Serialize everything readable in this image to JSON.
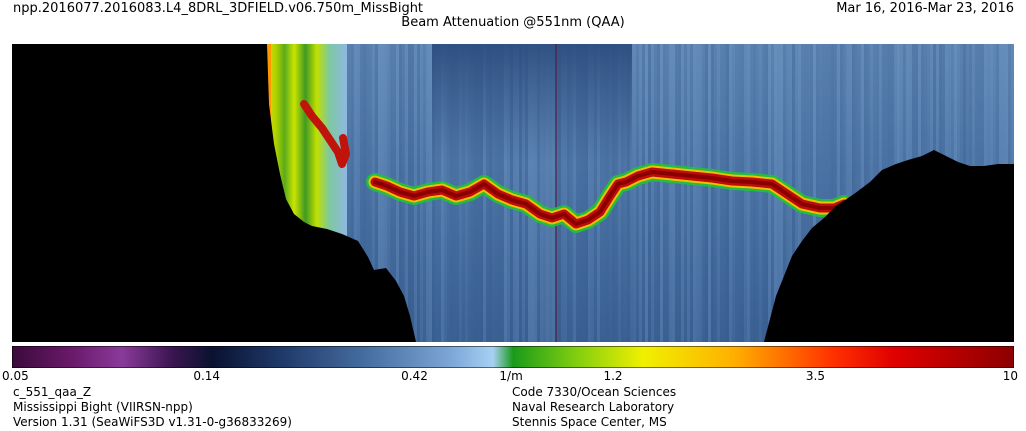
{
  "header": {
    "filename": "npp.2016077.2016083.L4_8DRL_3DFIELD.v06.750m_MissBight",
    "date_range": "Mar 16, 2016-Mar 23, 2016",
    "title": "Beam Attenuation @551nm (QAA)"
  },
  "chart_data": {
    "type": "heatmap",
    "title": "Beam Attenuation @551nm (QAA)",
    "colorbar": {
      "scale": "log",
      "range": [
        0.05,
        10
      ],
      "ticks": [
        {
          "value": 0.05,
          "label": "0.05"
        },
        {
          "value": 0.14,
          "label": "0.14"
        },
        {
          "value": 0.42,
          "label": "0.42"
        },
        {
          "value": 0.7,
          "label": "1/m"
        },
        {
          "value": 1.2,
          "label": "1.2"
        },
        {
          "value": 3.5,
          "label": "3.5"
        },
        {
          "value": 10,
          "label": "10"
        }
      ]
    }
  },
  "footer": {
    "left": [
      "c_551_qaa_Z",
      "Mississippi Bight (VIIRSN-npp)",
      "Version 1.31 (SeaWiFS3D v1.31-0-g36833269)"
    ],
    "right": [
      "Code 7330/Ocean Sciences",
      "Naval Research Laboratory",
      "Stennis Space Center, MS"
    ]
  }
}
